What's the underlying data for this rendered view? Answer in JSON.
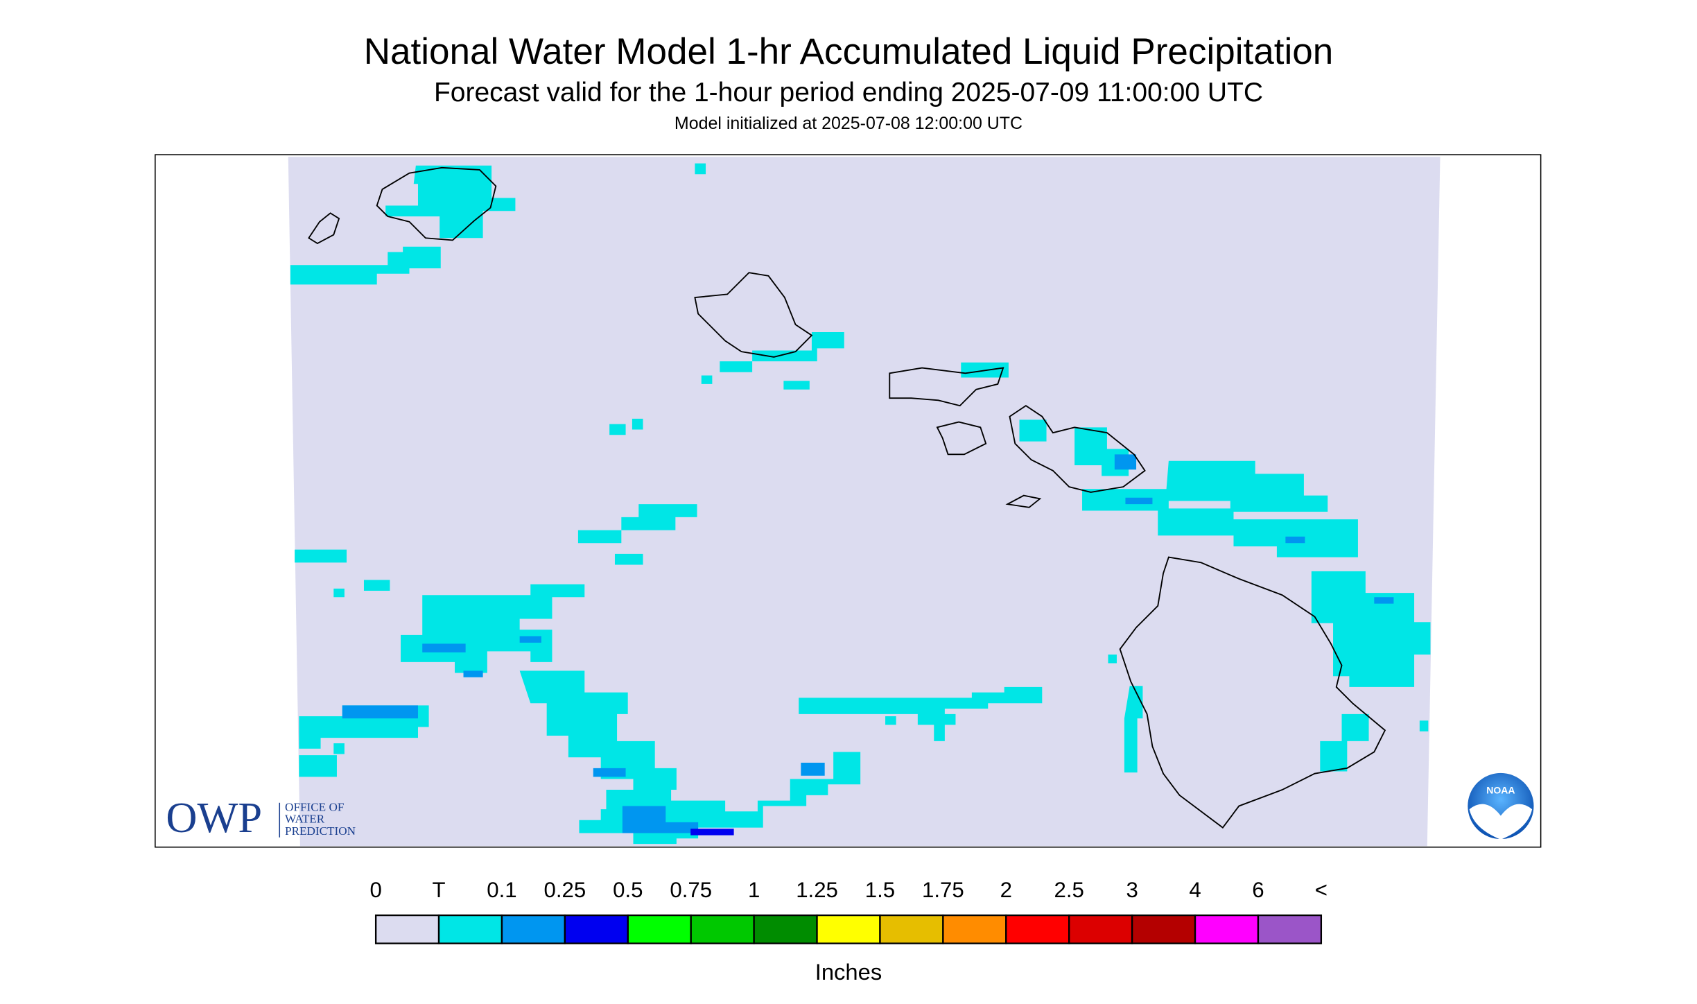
{
  "header": {
    "title": "National Water Model 1-hr Accumulated Liquid Precipitation",
    "subtitle": "Forecast valid for the 1-hour period ending 2025-07-09 11:00:00 UTC",
    "initialized": "Model initialized at 2025-07-08 12:00:00 UTC"
  },
  "legend": {
    "labels": [
      "0",
      "T",
      "0.1",
      "0.25",
      "0.5",
      "0.75",
      "1",
      "1.25",
      "1.5",
      "1.75",
      "2",
      "2.5",
      "3",
      "4",
      "6",
      "<"
    ],
    "colors": [
      "#dcdcf0",
      "#00e6e6",
      "#0096f0",
      "#0000f0",
      "#00ff00",
      "#00c800",
      "#008c00",
      "#ffff00",
      "#e6be00",
      "#ff8c00",
      "#ff0000",
      "#dc0000",
      "#b40000",
      "#ff00ff",
      "#9b55c8"
    ],
    "unit": "Inches"
  },
  "logos": {
    "owp": "OWP",
    "owp_lines": [
      "OFFICE OF",
      "WATER",
      "PREDICTION"
    ],
    "noaa": "NOAA"
  }
}
